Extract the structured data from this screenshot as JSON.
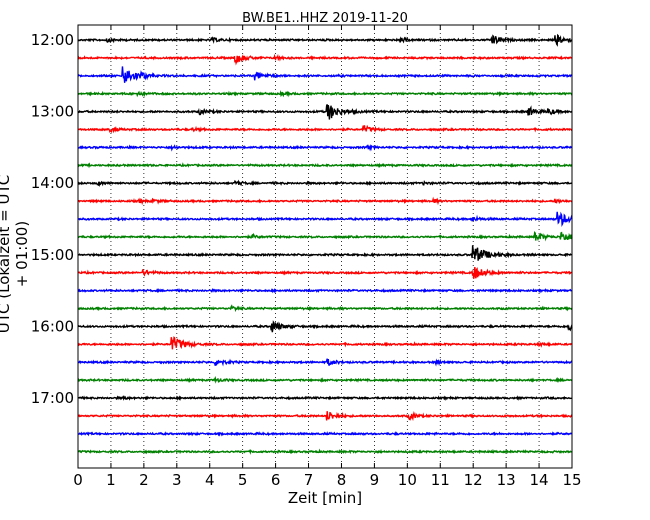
{
  "chart_data": {
    "type": "line",
    "title": "BW.BE1..HHZ 2019-11-20",
    "xlabel": "Zeit  [min]",
    "ylabel": "UTC (Lokalzeit = UTC + 01:00)",
    "xlim": [
      0,
      15
    ],
    "x_ticks": [
      "0",
      "1",
      "2",
      "3",
      "4",
      "5",
      "6",
      "7",
      "8",
      "9",
      "10",
      "11",
      "12",
      "13",
      "14",
      "15"
    ],
    "y_ticks": [
      {
        "row": 0,
        "label": "12:00"
      },
      {
        "row": 4,
        "label": "13:00"
      },
      {
        "row": 8,
        "label": "14:00"
      },
      {
        "row": 12,
        "label": "15:00"
      },
      {
        "row": 16,
        "label": "16:00"
      },
      {
        "row": 20,
        "label": "17:00"
      }
    ],
    "grid": "vertical-dotted",
    "row_minutes": 15,
    "row_colors": [
      "#000000",
      "#ff0000",
      "#0000ff",
      "#008000"
    ],
    "traces": [
      {
        "start": "12:00",
        "events": [
          {
            "t": 0.9,
            "amp": 0.5
          },
          {
            "t": 4.1,
            "amp": 0.4
          },
          {
            "t": 9.8,
            "amp": 0.5
          },
          {
            "t": 12.6,
            "amp": 1.0
          },
          {
            "t": 14.5,
            "amp": 1.2
          }
        ]
      },
      {
        "start": "12:15",
        "events": [
          {
            "t": 4.8,
            "amp": 1.1
          },
          {
            "t": 6.0,
            "amp": 0.35
          }
        ]
      },
      {
        "start": "12:30",
        "events": [
          {
            "t": 1.4,
            "amp": 2.0
          },
          {
            "t": 1.9,
            "amp": 0.4
          },
          {
            "t": 5.4,
            "amp": 0.9
          }
        ]
      },
      {
        "start": "12:45",
        "events": [
          {
            "t": 1.8,
            "amp": 0.5
          },
          {
            "t": 6.2,
            "amp": 0.3
          }
        ]
      },
      {
        "start": "13:00",
        "events": [
          {
            "t": 3.7,
            "amp": 0.6
          },
          {
            "t": 7.6,
            "amp": 1.9
          },
          {
            "t": 13.7,
            "amp": 0.9
          },
          {
            "t": 14.3,
            "amp": 0.6
          }
        ]
      },
      {
        "start": "13:15",
        "events": [
          {
            "t": 1.0,
            "amp": 0.5
          },
          {
            "t": 3.5,
            "amp": 0.3
          },
          {
            "t": 8.7,
            "amp": 0.7
          }
        ]
      },
      {
        "start": "13:30",
        "events": [
          {
            "t": 2.9,
            "amp": 0.3
          },
          {
            "t": 8.8,
            "amp": 0.3
          }
        ]
      },
      {
        "start": "13:45",
        "events": []
      },
      {
        "start": "14:00",
        "events": [
          {
            "t": 0.6,
            "amp": 0.3
          },
          {
            "t": 4.8,
            "amp": 0.4
          },
          {
            "t": 10.5,
            "amp": 0.3
          }
        ]
      },
      {
        "start": "14:15",
        "events": [
          {
            "t": 1.9,
            "amp": 0.3
          },
          {
            "t": 2.3,
            "amp": 0.3
          },
          {
            "t": 10.8,
            "amp": 0.3
          },
          {
            "t": 14.5,
            "amp": 0.4
          }
        ]
      },
      {
        "start": "14:30",
        "events": [
          {
            "t": 12.0,
            "amp": 0.5
          },
          {
            "t": 14.6,
            "amp": 1.6
          }
        ]
      },
      {
        "start": "14:45",
        "events": [
          {
            "t": 5.3,
            "amp": 0.4
          },
          {
            "t": 13.9,
            "amp": 1.0
          },
          {
            "t": 14.7,
            "amp": 1.2
          }
        ]
      },
      {
        "start": "15:00",
        "events": [
          {
            "t": 12.0,
            "amp": 2.2
          }
        ]
      },
      {
        "start": "15:15",
        "events": [
          {
            "t": 2.0,
            "amp": 0.6
          },
          {
            "t": 12.0,
            "amp": 1.6
          }
        ]
      },
      {
        "start": "15:30",
        "events": []
      },
      {
        "start": "15:45",
        "events": [
          {
            "t": 4.7,
            "amp": 0.4
          }
        ]
      },
      {
        "start": "16:00",
        "events": [
          {
            "t": 5.9,
            "amp": 1.3
          },
          {
            "t": 14.9,
            "amp": 0.9
          }
        ]
      },
      {
        "start": "16:15",
        "events": [
          {
            "t": 2.85,
            "amp": 1.8
          },
          {
            "t": 14.0,
            "amp": 0.3
          }
        ]
      },
      {
        "start": "16:30",
        "events": [
          {
            "t": 4.2,
            "amp": 0.8
          },
          {
            "t": 7.6,
            "amp": 0.7
          },
          {
            "t": 10.9,
            "amp": 0.3
          }
        ]
      },
      {
        "start": "16:45",
        "events": [
          {
            "t": 4.2,
            "amp": 0.4
          }
        ]
      },
      {
        "start": "17:00",
        "events": [
          {
            "t": 1.4,
            "amp": 0.2
          }
        ]
      },
      {
        "start": "17:15",
        "events": [
          {
            "t": 7.6,
            "amp": 1.0
          },
          {
            "t": 10.1,
            "amp": 0.7
          }
        ]
      },
      {
        "start": "17:30",
        "events": []
      },
      {
        "start": "17:45",
        "events": []
      }
    ]
  }
}
